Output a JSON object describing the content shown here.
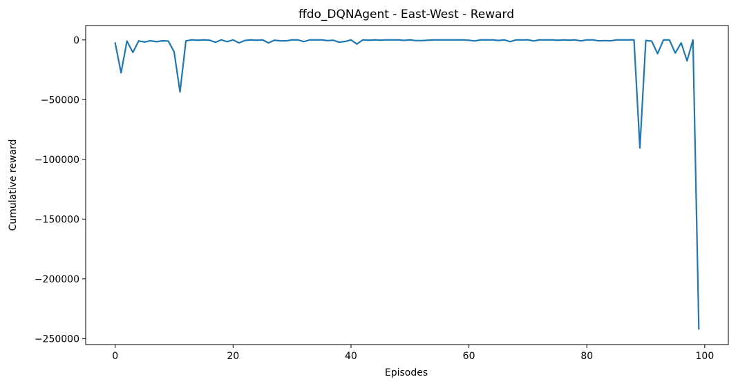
{
  "chart_data": {
    "type": "line",
    "title": "ffdo_DQNAgent - East-West - Reward",
    "xlabel": "Episodes",
    "ylabel": "Cumulative reward",
    "xlim": [
      -5,
      104
    ],
    "ylim": [
      -255000,
      12000
    ],
    "xticks": [
      0,
      20,
      40,
      60,
      80,
      100
    ],
    "yticks": [
      0,
      -50000,
      -100000,
      -150000,
      -200000,
      -250000
    ],
    "ytick_labels": [
      "0",
      "−50000",
      "−100000",
      "−150000",
      "−200000",
      "−250000"
    ],
    "grid": false,
    "series": [
      {
        "color": "#1f77b4",
        "x": [
          0,
          1,
          2,
          3,
          4,
          5,
          6,
          7,
          8,
          9,
          10,
          11,
          12,
          13,
          14,
          15,
          16,
          17,
          18,
          19,
          20,
          21,
          22,
          23,
          24,
          25,
          26,
          27,
          28,
          29,
          30,
          31,
          32,
          33,
          34,
          35,
          36,
          37,
          38,
          39,
          40,
          41,
          42,
          43,
          44,
          45,
          46,
          47,
          48,
          49,
          50,
          51,
          52,
          53,
          54,
          55,
          56,
          57,
          58,
          59,
          60,
          61,
          62,
          63,
          64,
          65,
          66,
          67,
          68,
          69,
          70,
          71,
          72,
          73,
          74,
          75,
          76,
          77,
          78,
          79,
          80,
          81,
          82,
          83,
          84,
          85,
          86,
          87,
          88,
          89,
          90,
          91,
          92,
          93,
          94,
          95,
          96,
          97,
          98,
          99
        ],
        "y": [
          -2500,
          -27500,
          -1000,
          -10500,
          -800,
          -1800,
          -700,
          -1500,
          -800,
          -900,
          -10000,
          -43500,
          -800,
          0,
          -300,
          0,
          -200,
          -2000,
          0,
          -1500,
          0,
          -2500,
          -500,
          0,
          -300,
          0,
          -2500,
          -300,
          -800,
          -800,
          0,
          0,
          -1500,
          0,
          0,
          0,
          -600,
          -300,
          -2000,
          -1300,
          0,
          -3500,
          0,
          -300,
          0,
          -200,
          0,
          0,
          0,
          -400,
          0,
          -600,
          -600,
          -300,
          0,
          0,
          0,
          0,
          0,
          0,
          -300,
          -900,
          0,
          0,
          0,
          -500,
          0,
          -1500,
          0,
          0,
          0,
          -900,
          0,
          0,
          0,
          -300,
          0,
          -200,
          0,
          -800,
          0,
          0,
          -800,
          -600,
          -800,
          0,
          0,
          0,
          0,
          -90500,
          -500,
          -1000,
          -11500,
          0,
          0,
          -11000,
          -2500,
          -17500,
          0,
          -242000
        ]
      }
    ]
  }
}
